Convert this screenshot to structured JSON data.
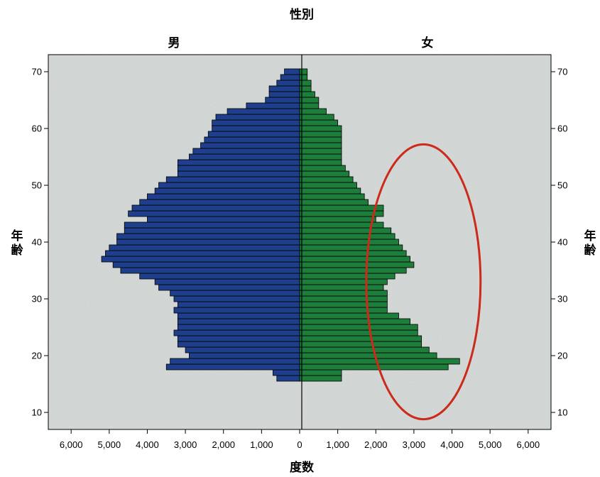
{
  "chart_data": {
    "type": "bar",
    "orientation": "horizontal",
    "subtype": "population-pyramid",
    "title": "性別",
    "panel_labels": {
      "left": "男",
      "right": "女"
    },
    "xlabel": "度数",
    "ylabel": "年齢",
    "ylabel_chars": [
      "年",
      "齢"
    ],
    "xlim": [
      -6600,
      6600
    ],
    "ylim": [
      7,
      73
    ],
    "x_ticks": [
      -6000,
      -5000,
      -4000,
      -3000,
      -2000,
      -1000,
      0,
      1000,
      2000,
      3000,
      4000,
      5000,
      6000
    ],
    "x_tick_labels": [
      "6,000",
      "5,000",
      "4,000",
      "3,000",
      "2,000",
      "1,000",
      "0",
      "1,000",
      "2,000",
      "3,000",
      "4,000",
      "5,000",
      "6,000"
    ],
    "y_ticks": [
      10,
      20,
      30,
      40,
      50,
      60,
      70
    ],
    "y_tick_labels": [
      "10",
      "20",
      "30",
      "40",
      "50",
      "60",
      "70"
    ],
    "ages": [
      16,
      17,
      18,
      19,
      20,
      21,
      22,
      23,
      24,
      25,
      26,
      27,
      28,
      29,
      30,
      31,
      32,
      33,
      34,
      35,
      36,
      37,
      38,
      39,
      40,
      41,
      42,
      43,
      44,
      45,
      46,
      47,
      48,
      49,
      50,
      51,
      52,
      53,
      54,
      55,
      56,
      57,
      58,
      59,
      60,
      61,
      62,
      63,
      64,
      65,
      66,
      67,
      68,
      69,
      70
    ],
    "series": [
      {
        "name": "男",
        "color": "#1f3f8c",
        "values": [
          600,
          700,
          3500,
          3400,
          2900,
          3000,
          3200,
          3200,
          3300,
          3200,
          3200,
          3200,
          3300,
          3200,
          3300,
          3400,
          3700,
          3800,
          4200,
          4700,
          4900,
          5200,
          5100,
          5000,
          4800,
          4800,
          4600,
          4600,
          4000,
          4500,
          4400,
          4200,
          4000,
          3800,
          3700,
          3500,
          3200,
          3200,
          3200,
          2900,
          2800,
          2600,
          2500,
          2400,
          2300,
          2300,
          2200,
          1900,
          1400,
          900,
          800,
          800,
          600,
          500,
          400
        ]
      },
      {
        "name": "女",
        "color": "#1e7d3b",
        "values": [
          1100,
          1100,
          3900,
          4200,
          3600,
          3400,
          3200,
          3200,
          3100,
          3100,
          2900,
          2600,
          2300,
          2300,
          2300,
          2300,
          2200,
          2300,
          2500,
          2800,
          3000,
          2900,
          2800,
          2700,
          2600,
          2500,
          2400,
          2200,
          2000,
          2200,
          2200,
          1800,
          1700,
          1600,
          1500,
          1400,
          1300,
          1200,
          1100,
          1100,
          1100,
          1100,
          1100,
          1100,
          1100,
          1000,
          900,
          700,
          500,
          500,
          400,
          300,
          300,
          200,
          200
        ]
      }
    ],
    "annotation": {
      "shape": "ellipse",
      "color": "#cc2a1a",
      "cx": 3250,
      "cy": 33,
      "rx": 1500,
      "ry": 24.2
    },
    "grid": false,
    "background": "#d7dbd9"
  }
}
